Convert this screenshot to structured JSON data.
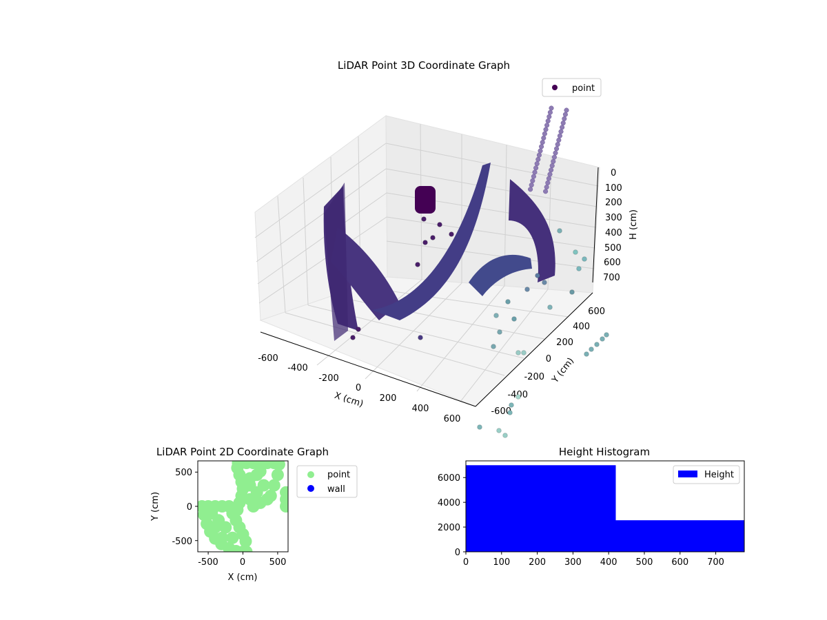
{
  "chart_data": [
    {
      "type": "scatter",
      "projection": "3d",
      "title": "LiDAR Point 3D Coordinate Graph",
      "xlabel": "X (cm)",
      "ylabel": "Y (cm)",
      "zlabel": "H (cm)",
      "xlim": [
        -700,
        700
      ],
      "ylim": [
        -700,
        700
      ],
      "zlim": [
        780,
        0
      ],
      "z_inverted": true,
      "xticks": [
        -600,
        -400,
        -200,
        0,
        200,
        400,
        600
      ],
      "yticks": [
        -600,
        -400,
        -200,
        0,
        200,
        400,
        600
      ],
      "zticks": [
        0,
        100,
        200,
        300,
        400,
        500,
        600,
        700
      ],
      "grid": true,
      "legend": {
        "position": "top-right",
        "entries": [
          "point"
        ]
      },
      "colormap": "viridis",
      "series": [
        {
          "name": "point",
          "color": "#440154",
          "description_points": [
            {
              "x": -600,
              "y": 300,
              "h": 120
            },
            {
              "x": -600,
              "y": 250,
              "h": 300
            },
            {
              "x": -600,
              "y": 200,
              "h": 500
            },
            {
              "x": -590,
              "y": 150,
              "h": 700
            },
            {
              "x": -550,
              "y": 400,
              "h": 200
            },
            {
              "x": -500,
              "y": 450,
              "h": 450
            },
            {
              "x": -450,
              "y": 500,
              "h": 650
            },
            {
              "x": -400,
              "y": 550,
              "h": 720
            },
            {
              "x": -300,
              "y": 500,
              "h": 700
            },
            {
              "x": -200,
              "y": 450,
              "h": 680
            },
            {
              "x": -100,
              "y": 400,
              "h": 650
            },
            {
              "x": 0,
              "y": 350,
              "h": 600
            },
            {
              "x": 100,
              "y": 300,
              "h": 500
            },
            {
              "x": 200,
              "y": 250,
              "h": 300
            },
            {
              "x": 250,
              "y": 250,
              "h": 50
            },
            {
              "x": 350,
              "y": 150,
              "h": 100
            },
            {
              "x": 400,
              "y": 100,
              "h": 300
            },
            {
              "x": 450,
              "y": 50,
              "h": 500
            },
            {
              "x": 500,
              "y": 0,
              "h": 700
            },
            {
              "x": 550,
              "y": -50,
              "h": 720
            },
            {
              "x": 200,
              "y": 0,
              "h": 500
            },
            {
              "x": 250,
              "y": -100,
              "h": 650
            },
            {
              "x": 300,
              "y": -200,
              "h": 700
            },
            {
              "x": -350,
              "y": 600,
              "h": 50
            },
            {
              "x": -300,
              "y": 650,
              "h": 100
            },
            {
              "x": 600,
              "y": -600,
              "h": 750
            },
            {
              "x": 650,
              "y": -650,
              "h": 760
            },
            {
              "x": 700,
              "y": -400,
              "h": 700
            }
          ]
        }
      ]
    },
    {
      "type": "scatter",
      "title": "LiDAR Point 2D Coordinate Graph",
      "xlabel": "X (cm)",
      "ylabel": "Y (cm)",
      "xlim": [
        -650,
        650
      ],
      "ylim": [
        -650,
        650
      ],
      "xticks": [
        -500,
        0,
        500
      ],
      "yticks": [
        -500,
        0,
        500
      ],
      "legend": {
        "position": "outside-right",
        "entries": [
          "point",
          "wall"
        ]
      },
      "series": [
        {
          "name": "point",
          "color": "#90ee90",
          "points": [
            [
              -590,
              0
            ],
            [
              -560,
              -120
            ],
            [
              -520,
              -250
            ],
            [
              -470,
              -360
            ],
            [
              -400,
              -460
            ],
            [
              -310,
              -540
            ],
            [
              -200,
              -600
            ],
            [
              -100,
              -640
            ],
            [
              0,
              -650
            ],
            [
              50,
              -650
            ],
            [
              40,
              -500
            ],
            [
              0,
              -400
            ],
            [
              -50,
              -300
            ],
            [
              -100,
              -200
            ],
            [
              -150,
              -100
            ],
            [
              -200,
              0
            ],
            [
              -300,
              0
            ],
            [
              -400,
              0
            ],
            [
              -500,
              0
            ],
            [
              -250,
              -300
            ],
            [
              -350,
              -200
            ],
            [
              -450,
              -100
            ],
            [
              -150,
              -450
            ],
            [
              -300,
              -450
            ],
            [
              -400,
              -300
            ],
            [
              -80,
              -50
            ],
            [
              -50,
              50
            ],
            [
              -20,
              150
            ],
            [
              0,
              250
            ],
            [
              -20,
              350
            ],
            [
              -50,
              450
            ],
            [
              -80,
              550
            ],
            [
              -70,
              620
            ],
            [
              50,
              620
            ],
            [
              150,
              620
            ],
            [
              250,
              620
            ],
            [
              350,
              620
            ],
            [
              450,
              620
            ],
            [
              520,
              600
            ],
            [
              500,
              450
            ],
            [
              450,
              300
            ],
            [
              400,
              150
            ],
            [
              350,
              100
            ],
            [
              250,
              50
            ],
            [
              150,
              0
            ],
            [
              100,
              100
            ],
            [
              200,
              200
            ],
            [
              300,
              300
            ],
            [
              100,
              400
            ],
            [
              250,
              500
            ],
            [
              620,
              200
            ],
            [
              620,
              100
            ],
            [
              620,
              0
            ],
            [
              100,
              300
            ],
            [
              200,
              450
            ]
          ]
        },
        {
          "name": "wall",
          "color": "#0000ff",
          "points": []
        }
      ]
    },
    {
      "type": "bar",
      "subtype": "histogram",
      "title": "Height Histogram",
      "xlabel": "",
      "ylabel": "",
      "xlim": [
        0,
        780
      ],
      "ylim": [
        0,
        7350
      ],
      "xticks": [
        0,
        100,
        200,
        300,
        400,
        500,
        600,
        700
      ],
      "yticks": [
        0,
        2000,
        4000,
        6000
      ],
      "legend": {
        "position": "top-right",
        "entries": [
          "Height"
        ]
      },
      "bins": [
        {
          "start": 0,
          "end": 420,
          "count": 7000
        },
        {
          "start": 420,
          "end": 780,
          "count": 2550
        }
      ],
      "series": [
        {
          "name": "Height",
          "color": "#0000ff"
        }
      ]
    }
  ]
}
